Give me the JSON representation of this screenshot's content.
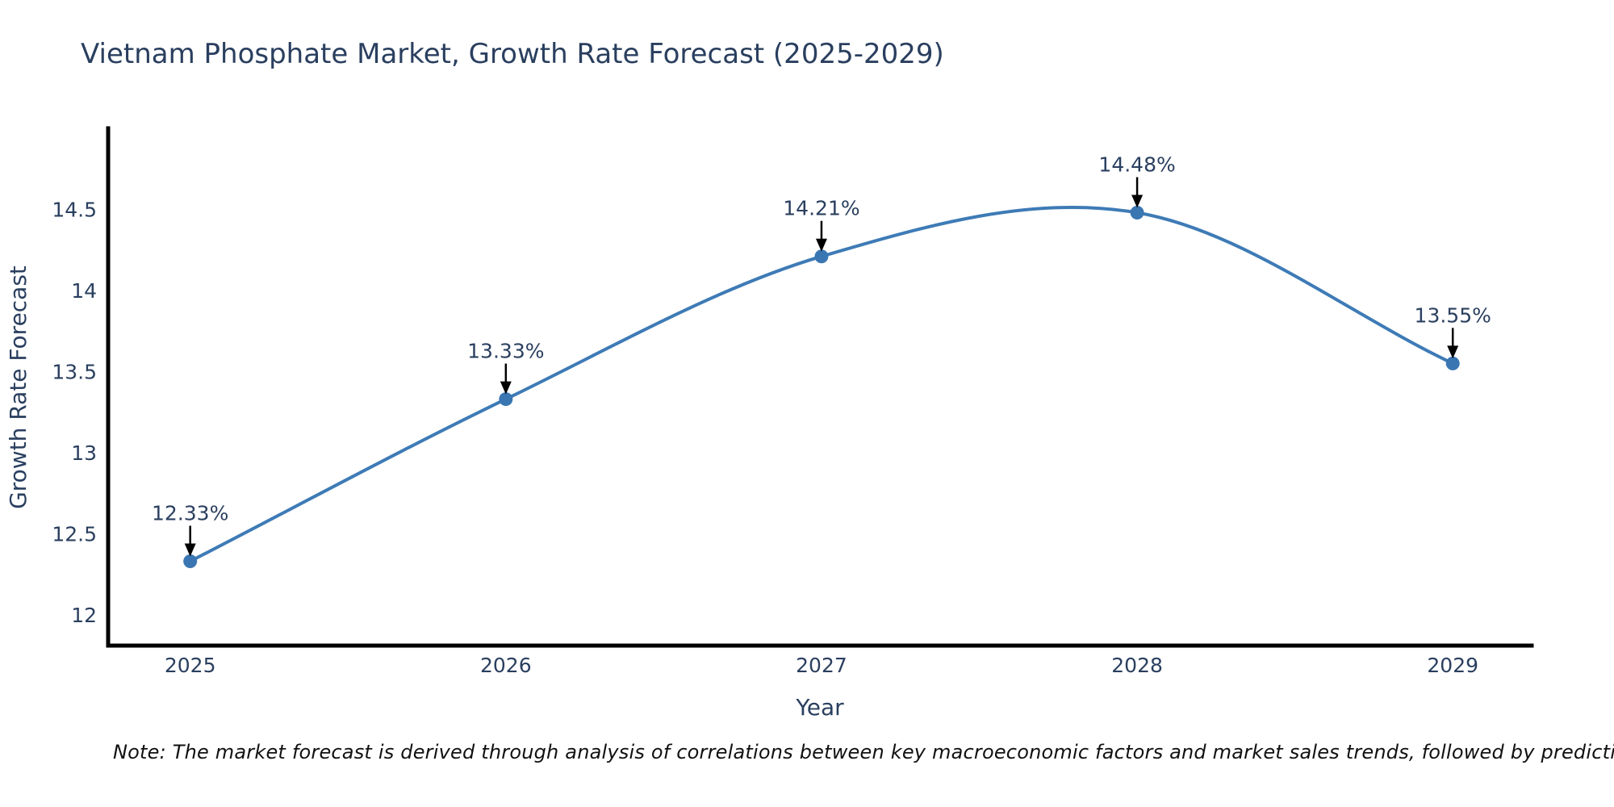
{
  "chart_data": {
    "type": "line",
    "title": "Vietnam Phosphate Market, Growth Rate Forecast (2025-2029)",
    "xlabel": "Year",
    "ylabel": "Growth Rate Forecast",
    "categories": [
      "2025",
      "2026",
      "2027",
      "2028",
      "2029"
    ],
    "x": [
      2025,
      2026,
      2027,
      2028,
      2029
    ],
    "series": [
      {
        "name": "Growth Rate Forecast",
        "values": [
          12.33,
          13.33,
          14.21,
          14.48,
          13.55
        ]
      }
    ],
    "point_labels": [
      "12.33%",
      "13.33%",
      "14.21%",
      "14.48%",
      "13.55%"
    ],
    "y_ticks": [
      12,
      12.5,
      13,
      13.5,
      14,
      14.5
    ],
    "y_tick_labels": [
      "12",
      "12.5",
      "13",
      "13.5",
      "14",
      "14.5"
    ],
    "xlim": [
      2024.74,
      2029.25
    ],
    "ylim": [
      11.81,
      15.0
    ],
    "line_shape": "spline",
    "grid": false,
    "legend_position": "none",
    "annotations_have_arrows": true,
    "colors": {
      "line": "#3e7bb6",
      "marker": "#3a76b2",
      "axis": "#000000",
      "text": "#2a3f5f",
      "annotation_text": "#2a3f5f",
      "arrow": "#000000"
    }
  },
  "footnote": "Note: The market forecast is derived through analysis of correlations between key macroeconomic factors and market sales trends, followed by predictive modeling to project future sales."
}
